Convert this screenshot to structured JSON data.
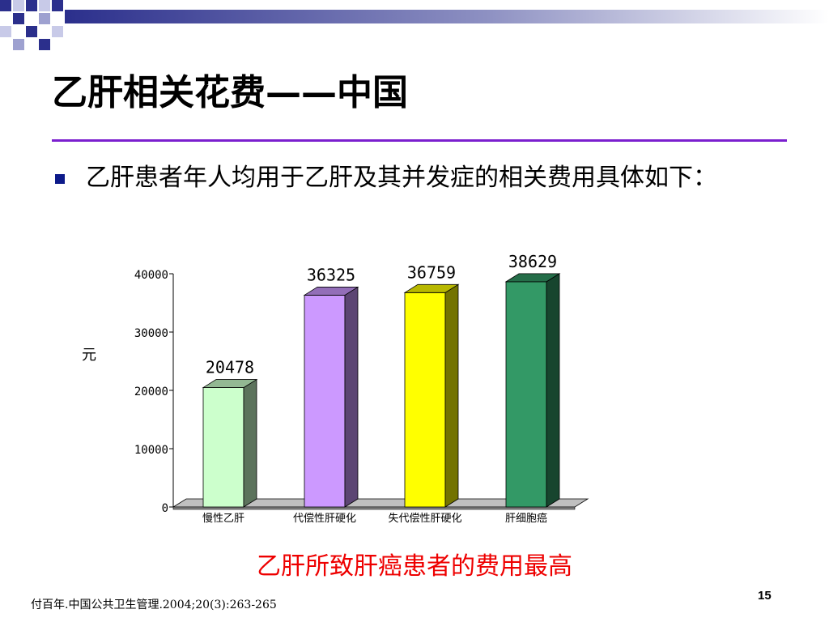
{
  "slide": {
    "title": "乙肝相关花费——中国",
    "bullet": "乙肝患者年人均用于乙肝及其并发症的相关费用具体如下：",
    "conclusion": "乙肝所致肝癌患者的费用最高",
    "citation": "付百年.中国公共卫生管理.2004;20(3):263-265",
    "page_number": "15"
  },
  "colors": {
    "title_rule": "#7b1fcf",
    "bullet": "#0d1a8a",
    "conclusion": "#ee0000",
    "decoration": "#2b2f8c"
  },
  "chart_data": {
    "type": "bar",
    "style": "3d",
    "categories": [
      "慢性乙肝",
      "代偿性肝硬化",
      "失代偿性肝硬化",
      "肝细胞癌"
    ],
    "values": [
      20478,
      36325,
      36759,
      38629
    ],
    "data_labels": [
      "20478",
      "36325",
      "36759",
      "38629"
    ],
    "bar_colors": [
      "#ccffcc",
      "#cc99ff",
      "#ffff00",
      "#339966"
    ],
    "ylabel": "元",
    "ylim": [
      0,
      40000
    ],
    "yticks": [
      0,
      10000,
      20000,
      30000,
      40000
    ],
    "grid": false,
    "legend": "none"
  }
}
